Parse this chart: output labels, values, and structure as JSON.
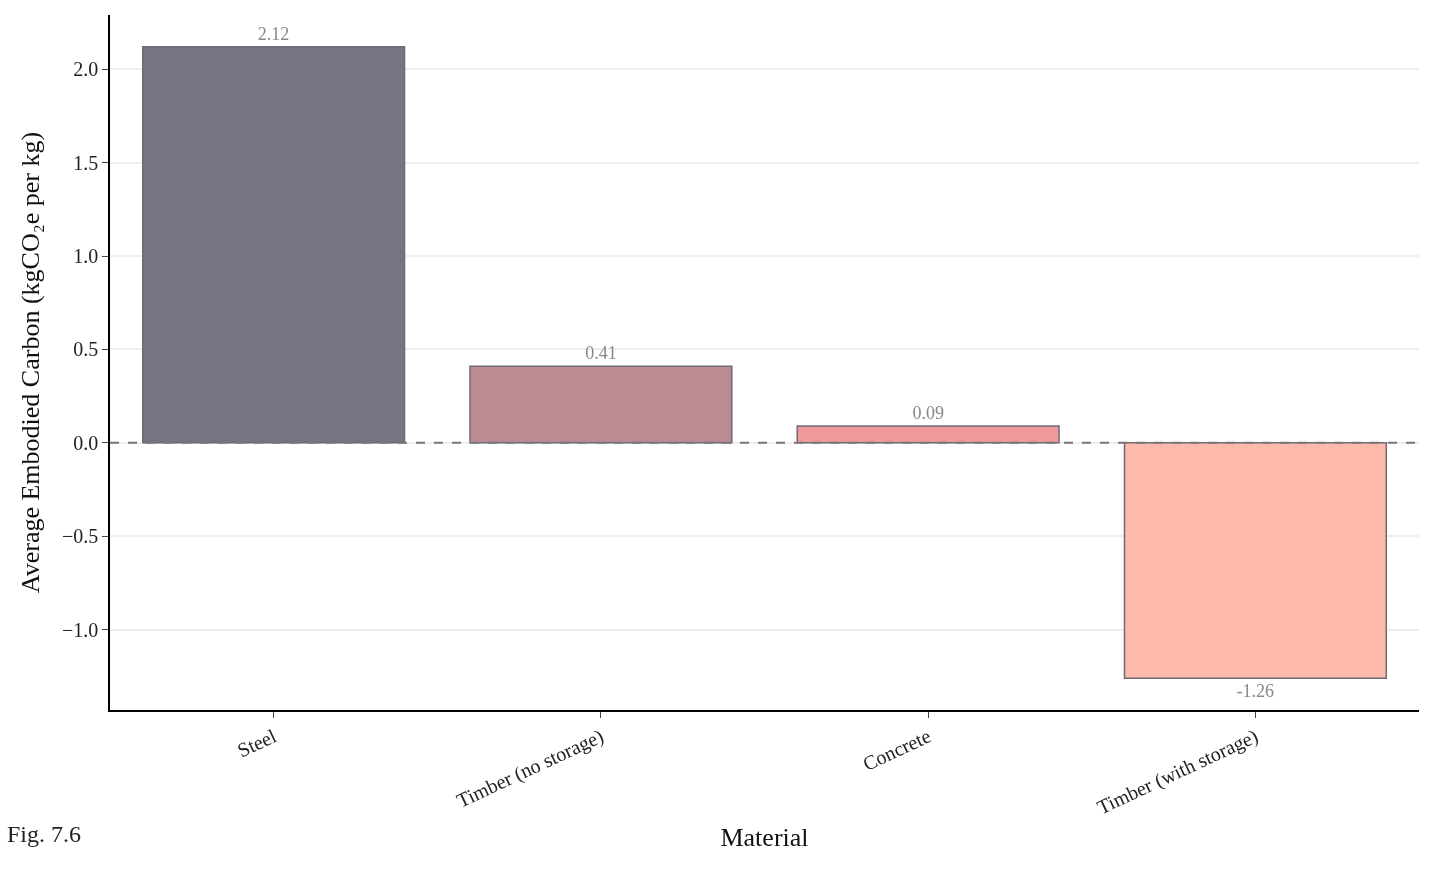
{
  "chart_data": {
    "type": "bar",
    "xlabel": "Material",
    "ylabel": "Average Embodied Carbon (kgCO₂e per kg)",
    "categories": [
      "Steel",
      "Timber (no storage)",
      "Concrete",
      "Timber (with storage)"
    ],
    "values": [
      2.12,
      0.41,
      0.09,
      -1.26
    ],
    "colors": [
      "#787380",
      "#bb8b93",
      "#f0999b",
      "#fdbaab"
    ],
    "value_labels": [
      "2.12",
      "0.41",
      "0.09",
      "-1.26"
    ],
    "ylim": [
      -1.43,
      2.29
    ],
    "yticks": [
      {
        "value": -1.0,
        "label": "−1.0"
      },
      {
        "value": -0.5,
        "label": "−0.5"
      },
      {
        "value": 0.0,
        "label": "0.0"
      },
      {
        "value": 0.5,
        "label": "0.5"
      },
      {
        "value": 1.0,
        "label": "1.0"
      },
      {
        "value": 1.5,
        "label": "1.5"
      },
      {
        "value": 2.0,
        "label": "2.0"
      }
    ],
    "ref_lines": [
      {
        "axis": "y",
        "value": 0,
        "color": "#777777",
        "line_style": "dashed"
      }
    ],
    "grid": "y",
    "annotations": [
      "Fig. 7.6"
    ]
  }
}
